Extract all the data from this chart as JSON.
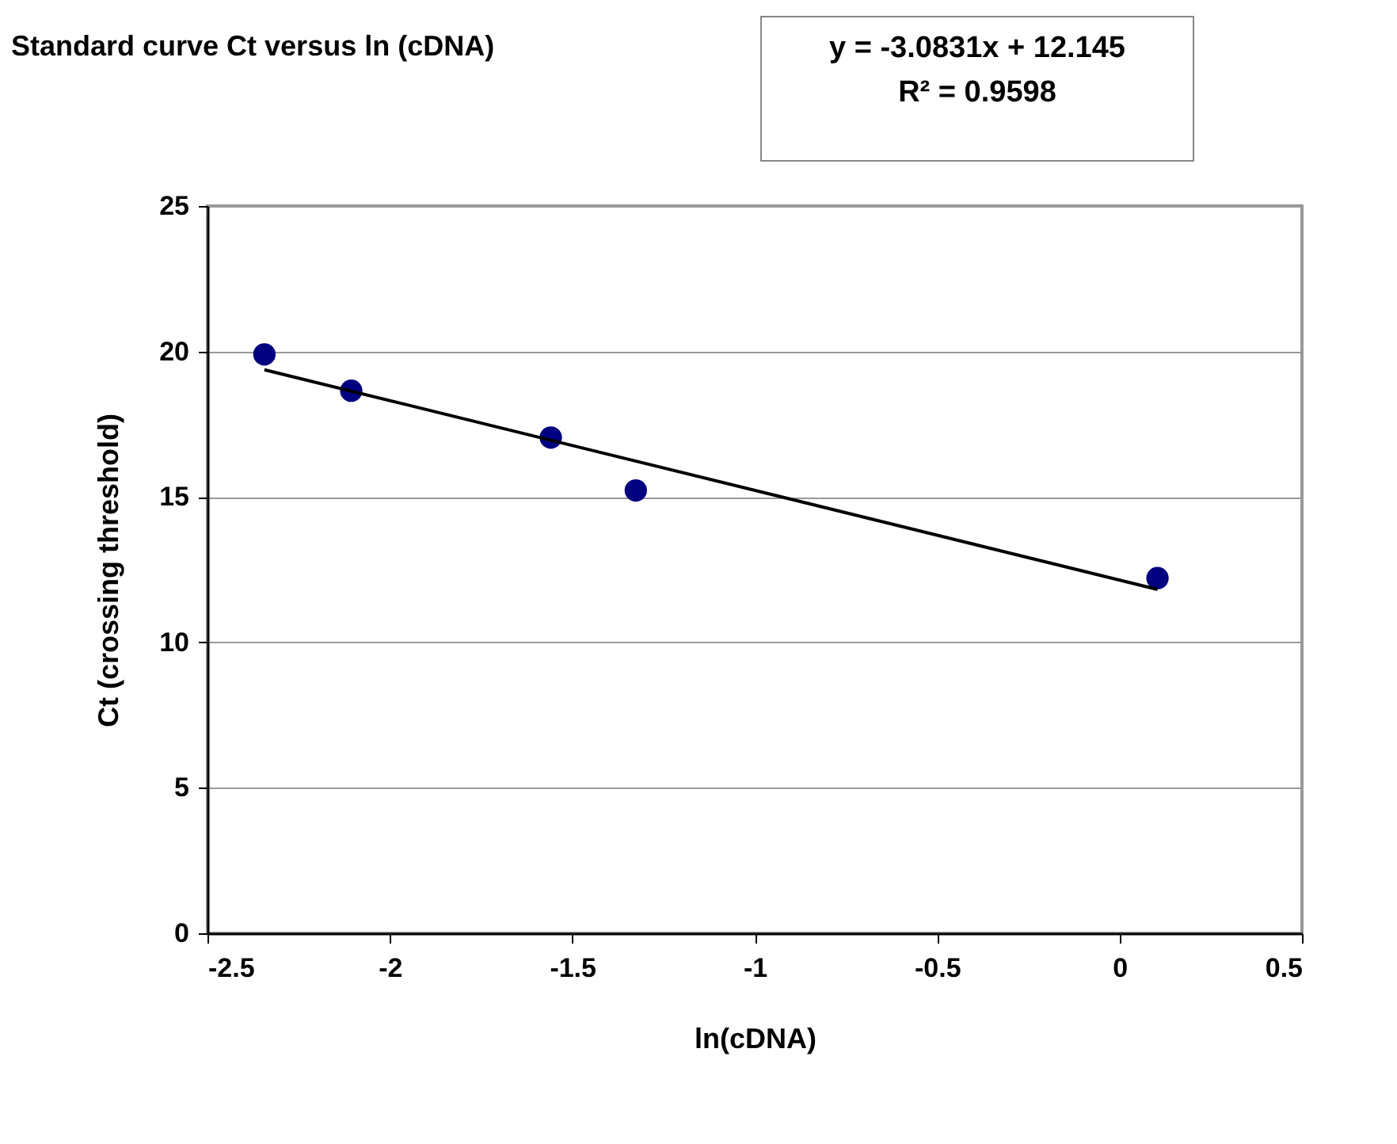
{
  "chart_data": {
    "type": "scatter",
    "title": "Standard curve Ct versus ln (cDNA)",
    "xlabel": "ln(cDNA)",
    "ylabel": "Ct (crossing threshold)",
    "annotations": [
      "y = -3.0831x + 12.145",
      "R² = 0.9598"
    ],
    "x": [
      -2.344,
      -2.106,
      -1.559,
      -1.326,
      0.104
    ],
    "series": [
      {
        "color": "#000080",
        "values": [
          19.9,
          18.65,
          17.04,
          15.22,
          12.21
        ]
      },
      {
        "type": "line",
        "marker": "none",
        "color": "#000000",
        "x": [
          -2.344,
          0.104
        ],
        "values": [
          19.37,
          11.82
        ]
      }
    ],
    "xlim": [
      -2.5,
      0.5
    ],
    "xticks": [
      -2.5,
      -2,
      -1.5,
      -1,
      -0.5,
      0,
      0.5
    ],
    "ylim": [
      0,
      25
    ],
    "yticks": [
      0,
      5,
      10,
      15,
      20,
      25
    ],
    "grid": "y",
    "marker": "circle",
    "line_style": "solid"
  }
}
